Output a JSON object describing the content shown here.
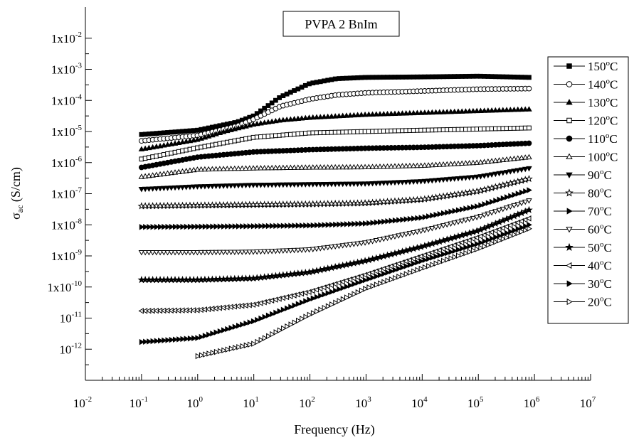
{
  "chart_data": {
    "type": "scatter",
    "title": "PVPA 2 BnIm",
    "xlabel": "Frequency (Hz)",
    "ylabel": {
      "main": "σ",
      "sub": "ac",
      "rest": " (S/cm)"
    },
    "xscale": "log",
    "yscale": "log",
    "xlim": [
      0.01,
      10000000
    ],
    "ylim": [
      1e-13,
      0.1
    ],
    "x_ticks": [
      {
        "exp": "-2",
        "value": 0.01
      },
      {
        "exp": "-1",
        "value": 0.1
      },
      {
        "exp": "0",
        "value": 1
      },
      {
        "exp": "1",
        "value": 10
      },
      {
        "exp": "2",
        "value": 100
      },
      {
        "exp": "3",
        "value": 1000
      },
      {
        "exp": "4",
        "value": 10000
      },
      {
        "exp": "5",
        "value": 100000
      },
      {
        "exp": "6",
        "value": 1000000
      },
      {
        "exp": "7",
        "value": 10000000
      }
    ],
    "y_ticks": [
      {
        "mant": "",
        "exp": "-12",
        "value": 1e-12
      },
      {
        "mant": "",
        "exp": "-11",
        "value": 1e-11
      },
      {
        "mant": "1x",
        "exp": "-10",
        "value": 1e-10
      },
      {
        "mant": "1x",
        "exp": "-9",
        "value": 1e-09
      },
      {
        "mant": "1x",
        "exp": "-8",
        "value": 1e-08
      },
      {
        "mant": "1x",
        "exp": "-7",
        "value": 1e-07
      },
      {
        "mant": "1x",
        "exp": "-6",
        "value": 1e-06
      },
      {
        "mant": "1x",
        "exp": "-5",
        "value": 1e-05
      },
      {
        "mant": "1x",
        "exp": "-4",
        "value": 0.0001
      },
      {
        "mant": "1x",
        "exp": "-3",
        "value": 0.001
      },
      {
        "mant": "1x",
        "exp": "-2",
        "value": 0.01
      }
    ],
    "grid": false,
    "legend_position": "right",
    "series": [
      {
        "name": "150",
        "marker": "square-filled",
        "x": [
          0.1,
          1,
          5,
          10,
          30,
          100,
          300,
          1000,
          10000,
          100000,
          800000
        ],
        "y": [
          8e-06,
          1.1e-05,
          2e-05,
          3.2e-05,
          0.00013,
          0.00035,
          0.0005,
          0.00055,
          0.00057,
          0.0006,
          0.00055
        ]
      },
      {
        "name": "140",
        "marker": "circle-open",
        "x": [
          0.1,
          1,
          5,
          10,
          30,
          100,
          300,
          1000,
          10000,
          100000,
          800000
        ],
        "y": [
          5e-06,
          7.5e-06,
          1.5e-05,
          2.5e-05,
          6.5e-05,
          0.00011,
          0.00015,
          0.000175,
          0.0002,
          0.00023,
          0.00024
        ]
      },
      {
        "name": "130",
        "marker": "triangle-up-filled",
        "x": [
          0.1,
          1,
          3,
          10,
          30,
          100,
          1000,
          10000,
          100000,
          800000
        ],
        "y": [
          2.7e-06,
          5.5e-06,
          1e-05,
          1.7e-05,
          2.3e-05,
          2.8e-05,
          3.5e-05,
          4e-05,
          4.6e-05,
          5.2e-05
        ]
      },
      {
        "name": "120",
        "marker": "square-open",
        "x": [
          0.1,
          1,
          10,
          100,
          1000,
          10000,
          100000,
          800000
        ],
        "y": [
          1.3e-06,
          3e-06,
          6.5e-06,
          9e-06,
          1e-05,
          1.1e-05,
          1.2e-05,
          1.3e-05
        ]
      },
      {
        "name": "110",
        "marker": "circle-filled",
        "x": [
          0.1,
          1,
          10,
          100,
          1000,
          10000,
          100000,
          800000
        ],
        "y": [
          7e-07,
          1.5e-06,
          2.2e-06,
          2.6e-06,
          2.9e-06,
          3.1e-06,
          3.5e-06,
          4.2e-06
        ]
      },
      {
        "name": "100",
        "marker": "triangle-up-open",
        "x": [
          0.1,
          1,
          10,
          100,
          1000,
          10000,
          100000,
          800000
        ],
        "y": [
          3.5e-07,
          6e-07,
          6.6e-07,
          7e-07,
          7.2e-07,
          8e-07,
          1e-06,
          1.5e-06
        ]
      },
      {
        "name": "90",
        "marker": "triangle-down-filled",
        "x": [
          0.1,
          1,
          10,
          100,
          1000,
          10000,
          100000,
          800000
        ],
        "y": [
          1.4e-07,
          1.7e-07,
          1.9e-07,
          2e-07,
          2.1e-07,
          2.5e-07,
          3.5e-07,
          6.5e-07
        ]
      },
      {
        "name": "80",
        "marker": "star-open",
        "x": [
          0.1,
          1,
          10,
          100,
          1000,
          10000,
          100000,
          800000
        ],
        "y": [
          4e-08,
          4.2e-08,
          4.4e-08,
          4.6e-08,
          5e-08,
          6.5e-08,
          1.2e-07,
          3e-07
        ]
      },
      {
        "name": "70",
        "marker": "triangle-right-filled",
        "x": [
          0.1,
          1,
          10,
          100,
          1000,
          10000,
          100000,
          800000
        ],
        "y": [
          8.5e-09,
          8.7e-09,
          9e-09,
          9.5e-09,
          1.1e-08,
          1.7e-08,
          4e-08,
          1.3e-07
        ]
      },
      {
        "name": "60",
        "marker": "triangle-down-open",
        "x": [
          0.1,
          1,
          10,
          100,
          1000,
          10000,
          100000,
          800000
        ],
        "y": [
          1.3e-09,
          1.3e-09,
          1.35e-09,
          1.6e-09,
          2.7e-09,
          6.5e-09,
          1.8e-08,
          6e-08
        ]
      },
      {
        "name": "50",
        "marker": "star-filled",
        "x": [
          0.1,
          1,
          10,
          100,
          1000,
          10000,
          100000,
          800000
        ],
        "y": [
          1.7e-10,
          1.7e-10,
          1.9e-10,
          3e-10,
          7e-10,
          2e-09,
          6.5e-09,
          3e-08
        ]
      },
      {
        "name": "40",
        "marker": "triangle-left-open",
        "x": [
          0.1,
          1,
          10,
          100,
          1000,
          10000,
          100000,
          800000
        ],
        "y": [
          1.7e-11,
          1.8e-11,
          2.7e-11,
          7e-11,
          2.5e-10,
          1e-09,
          4e-09,
          1.6e-08
        ]
      },
      {
        "name": "30",
        "marker": "triangle-right-filled",
        "x": [
          0.1,
          1,
          10,
          100,
          1000,
          10000,
          100000,
          800000
        ],
        "y": [
          1.7e-12,
          2.3e-12,
          8e-12,
          4e-11,
          1.7e-10,
          7e-10,
          2.5e-09,
          1e-08
        ]
      },
      {
        "name": "20",
        "marker": "triangle-right-open",
        "x": [
          1,
          10,
          100,
          1000,
          10000,
          100000,
          800000
        ],
        "y": [
          6e-13,
          1.5e-12,
          1.3e-11,
          9e-11,
          4e-10,
          1.7e-09,
          7.5e-09
        ]
      }
    ],
    "legend_unit": "oC"
  }
}
